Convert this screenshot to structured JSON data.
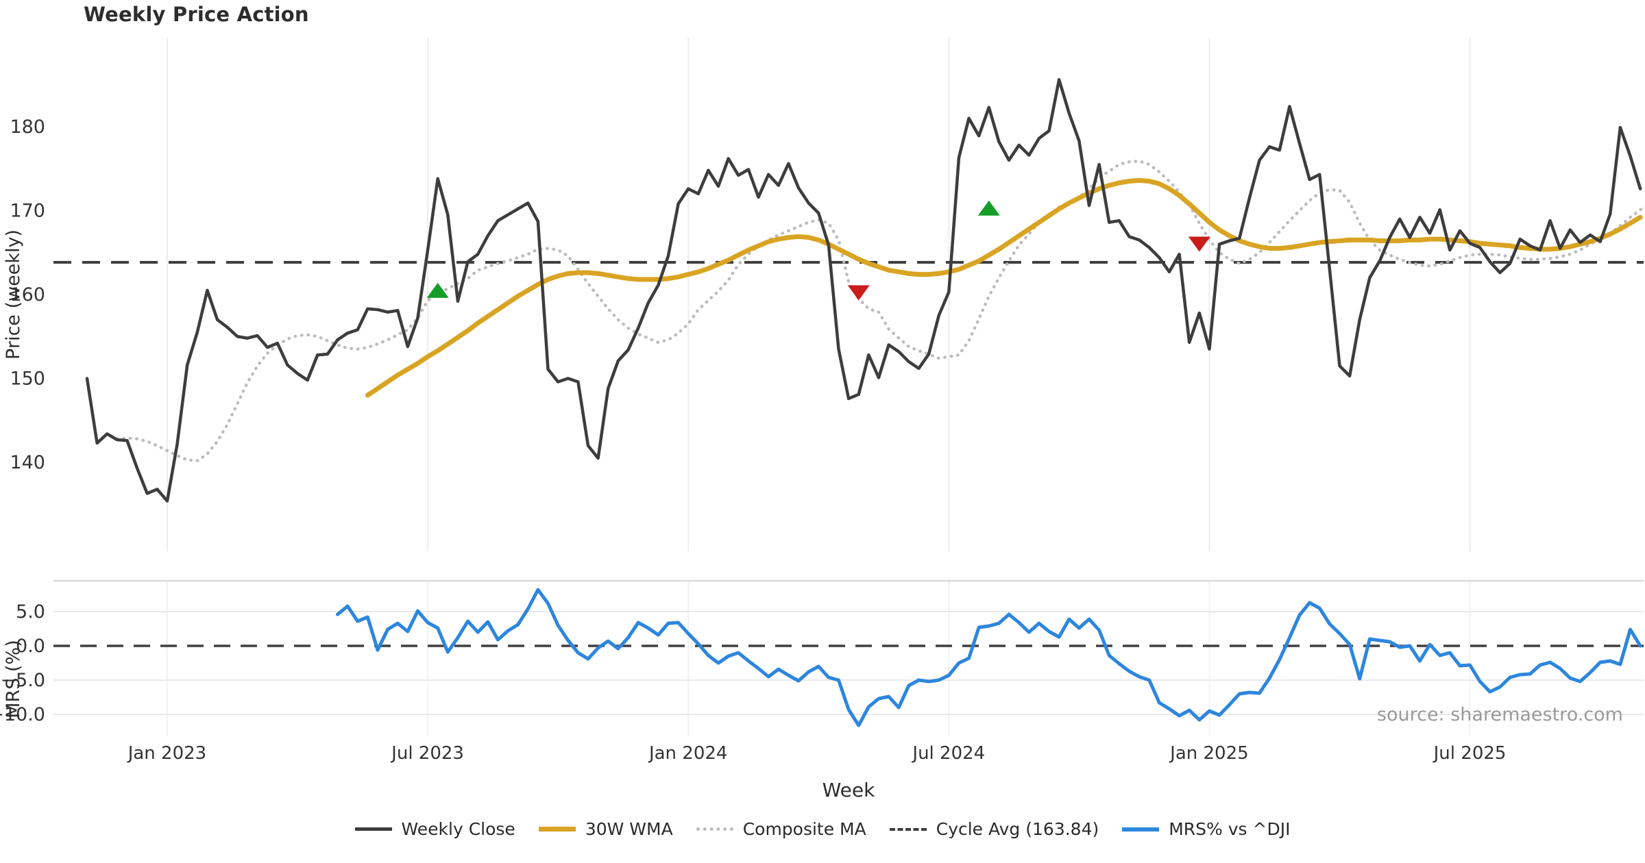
{
  "title": "Weekly Price Action",
  "source_note": "source: sharemaestro.com",
  "colors": {
    "close": "#3d3d3d",
    "wma": "#d9a423",
    "composite": "#bcbcbc",
    "cycle_avg": "#3f3f3f",
    "mrs": "#2d86dd",
    "buy_marker": "#149e27",
    "sell_marker": "#c91c1c",
    "grid_vertical": "#ededf1",
    "grid_horizontal": "#e8e8ed",
    "panel_spine": "#d8d8de",
    "tick_text": "#333333",
    "source_text": "#9a9a9a"
  },
  "legend": [
    {
      "label": "Weekly Close",
      "style": "solid",
      "color": "#3d3d3d",
      "thickness": 5
    },
    {
      "label": "30W WMA",
      "style": "solid",
      "color": "#d9a423",
      "thickness": 7
    },
    {
      "label": "Composite MA",
      "style": "dotted",
      "color": "#bcbcbc",
      "thickness": 5
    },
    {
      "label": "Cycle Avg (163.84)",
      "style": "dashed",
      "color": "#3f3f3f",
      "thickness": 4
    },
    {
      "label": "MRS% vs ^DJI",
      "style": "solid",
      "color": "#2d86dd",
      "thickness": 6
    }
  ],
  "chart_data": [
    {
      "type": "line",
      "panel": "price",
      "title": "Weekly Price Action",
      "xlabel": "Week",
      "ylabel": "Price (weekly)",
      "start_date": "2022-11-07",
      "frequency": "weekly",
      "ylim": [
        129.4,
        190.6
      ],
      "yticks": [
        {
          "v": 140,
          "label": "140"
        },
        {
          "v": 150,
          "label": "150"
        },
        {
          "v": 160,
          "label": "160"
        },
        {
          "v": 170,
          "label": "170"
        },
        {
          "v": 180,
          "label": "180"
        }
      ],
      "xticks": [
        {
          "week": 8,
          "label": "Jan 2023"
        },
        {
          "week": 34,
          "label": "Jul 2023"
        },
        {
          "week": 60,
          "label": "Jan 2024"
        },
        {
          "week": 86,
          "label": "Jul 2024"
        },
        {
          "week": 112,
          "label": "Jan 2025"
        },
        {
          "week": 138,
          "label": "Jul 2025"
        }
      ],
      "cycle_avg": 163.84,
      "series": [
        {
          "name": "Weekly Close",
          "start_week": 0,
          "values": [
            150.0,
            142.3,
            143.4,
            142.7,
            142.6,
            139.3,
            136.3,
            136.8,
            135.4,
            142.2,
            151.6,
            155.5,
            160.5,
            157.0,
            156.1,
            155.0,
            154.8,
            155.1,
            153.7,
            154.2,
            151.6,
            150.6,
            149.8,
            152.8,
            152.9,
            154.6,
            155.4,
            155.8,
            158.3,
            158.2,
            157.9,
            158.1,
            153.8,
            157.2,
            165.3,
            173.8,
            169.5,
            159.2,
            163.9,
            164.8,
            167.0,
            168.8,
            169.5,
            170.2,
            170.9,
            168.7,
            151.1,
            149.6,
            150.0,
            149.6,
            142.0,
            140.5,
            148.8,
            152.1,
            153.4,
            156.0,
            159.0,
            161.1,
            164.6,
            170.8,
            172.6,
            172.0,
            174.8,
            172.9,
            176.2,
            174.2,
            174.9,
            171.6,
            174.3,
            173.0,
            175.6,
            172.7,
            170.9,
            169.7,
            165.9,
            153.5,
            147.6,
            148.1,
            152.8,
            150.1,
            154.0,
            153.2,
            152.0,
            151.2,
            152.9,
            157.5,
            160.3,
            176.3,
            181.0,
            178.9,
            182.3,
            178.2,
            176.0,
            177.8,
            176.6,
            178.6,
            179.5,
            185.6,
            181.6,
            178.3,
            170.6,
            175.5,
            168.6,
            168.8,
            166.9,
            166.5,
            165.6,
            164.4,
            162.7,
            164.8,
            154.3,
            157.8,
            153.5,
            166.0,
            166.4,
            166.7,
            171.5,
            176.0,
            177.6,
            177.2,
            182.4,
            178.0,
            173.7,
            174.3,
            163.0,
            151.5,
            150.3,
            157.0,
            162.0,
            164.0,
            166.8,
            169.0,
            166.8,
            169.2,
            167.3,
            170.1,
            165.3,
            167.6,
            166.1,
            165.6,
            163.9,
            162.6,
            163.7,
            166.6,
            165.8,
            165.3,
            168.8,
            165.5,
            167.7,
            166.2,
            167.1,
            166.3,
            169.6,
            179.9,
            176.5,
            172.6
          ]
        },
        {
          "name": "30W WMA",
          "start_week": 28,
          "values": [
            148.0,
            148.8,
            149.6,
            150.4,
            151.1,
            151.8,
            152.6,
            153.3,
            154.1,
            154.9,
            155.7,
            156.6,
            157.4,
            158.2,
            159.0,
            159.8,
            160.5,
            161.2,
            161.8,
            162.2,
            162.5,
            162.6,
            162.6,
            162.5,
            162.3,
            162.1,
            161.9,
            161.8,
            161.8,
            161.8,
            161.9,
            162.1,
            162.4,
            162.7,
            163.1,
            163.6,
            164.1,
            164.7,
            165.3,
            165.8,
            166.3,
            166.6,
            166.8,
            166.9,
            166.8,
            166.5,
            166.0,
            165.4,
            164.8,
            164.2,
            163.7,
            163.3,
            162.9,
            162.7,
            162.5,
            162.4,
            162.4,
            162.5,
            162.7,
            163.0,
            163.5,
            164.0,
            164.7,
            165.4,
            166.2,
            167.0,
            167.8,
            168.6,
            169.4,
            170.2,
            170.9,
            171.5,
            172.1,
            172.6,
            173.0,
            173.3,
            173.5,
            173.6,
            173.5,
            173.2,
            172.6,
            171.8,
            170.8,
            169.7,
            168.6,
            167.7,
            167.0,
            166.4,
            166.0,
            165.7,
            165.5,
            165.5,
            165.6,
            165.8,
            166.0,
            166.2,
            166.3,
            166.4,
            166.5,
            166.5,
            166.5,
            166.4,
            166.4,
            166.4,
            166.5,
            166.5,
            166.6,
            166.6,
            166.5,
            166.4,
            166.3,
            166.1,
            166.0,
            165.9,
            165.8,
            165.6,
            165.5,
            165.4,
            165.4,
            165.5,
            165.7,
            166.0,
            166.3,
            166.7,
            167.2,
            167.8,
            168.5,
            169.2
          ]
        },
        {
          "name": "Composite MA",
          "start_week": 3,
          "values": [
            142.8,
            142.9,
            142.8,
            142.5,
            142.0,
            141.4,
            140.8,
            140.3,
            140.2,
            141.0,
            142.5,
            144.5,
            147.0,
            149.5,
            151.5,
            153.0,
            154.0,
            154.7,
            155.1,
            155.2,
            155.0,
            154.5,
            154.0,
            153.6,
            153.5,
            153.7,
            154.1,
            154.6,
            155.2,
            155.8,
            157.2,
            159.3,
            160.1,
            160.7,
            161.3,
            161.9,
            162.9,
            163.3,
            163.7,
            164.0,
            164.4,
            164.8,
            165.4,
            165.5,
            165.3,
            164.6,
            163.0,
            161.3,
            159.8,
            158.3,
            157.0,
            156.0,
            155.3,
            154.8,
            154.3,
            154.6,
            155.4,
            156.5,
            158.2,
            159.3,
            160.4,
            161.7,
            163.6,
            164.8,
            165.8,
            166.5,
            167.1,
            167.6,
            168.1,
            168.6,
            168.9,
            168.5,
            166.5,
            161.5,
            159.5,
            158.3,
            157.9,
            155.9,
            154.8,
            153.8,
            153.3,
            152.9,
            152.4,
            152.6,
            152.8,
            154.5,
            157.1,
            159.8,
            162.0,
            164.0,
            165.9,
            167.2,
            168.6,
            169.5,
            170.4,
            171.0,
            171.6,
            172.6,
            173.9,
            174.7,
            175.5,
            175.8,
            175.9,
            175.5,
            174.6,
            173.5,
            172.2,
            170.7,
            168.5,
            166.5,
            165.0,
            164.2,
            163.7,
            164.2,
            165.0,
            166.2,
            167.5,
            168.8,
            170.0,
            171.2,
            172.1,
            172.5,
            172.4,
            171.0,
            168.5,
            166.5,
            165.3,
            164.7,
            164.2,
            163.8,
            163.5,
            163.4,
            163.6,
            164.0,
            164.4,
            164.7,
            164.8,
            164.8,
            164.7,
            164.5,
            164.3,
            164.2,
            164.2,
            164.3,
            164.5,
            164.8,
            165.3,
            166.0,
            166.6,
            167.3,
            168.2,
            169.2,
            170.1,
            170.8,
            171.2
          ]
        }
      ],
      "markers": {
        "buy": [
          {
            "week": 35,
            "value": 160.5
          },
          {
            "week": 90,
            "value": 170.3
          }
        ],
        "sell": [
          {
            "week": 77,
            "value": 160.2
          },
          {
            "week": 111,
            "value": 166.0
          }
        ]
      }
    },
    {
      "type": "line",
      "panel": "mrs",
      "ylabel": "MRS (%)",
      "ylim": [
        -13.2,
        9.5
      ],
      "yticks": [
        {
          "v": 5,
          "label": "5.0"
        },
        {
          "v": 0,
          "label": "0.0"
        },
        {
          "v": -5,
          "label": "−5.0"
        },
        {
          "v": -10,
          "label": "−10.0"
        }
      ],
      "zero_line": 0,
      "series": [
        {
          "name": "MRS% vs ^DJI",
          "start_week": 25,
          "values": [
            4.6,
            5.8,
            3.6,
            4.2,
            -0.6,
            2.4,
            3.3,
            2.1,
            5.1,
            3.4,
            2.6,
            -0.9,
            1.2,
            3.6,
            2.0,
            3.5,
            0.9,
            2.2,
            3.1,
            5.4,
            8.2,
            6.2,
            3.0,
            0.8,
            -1.0,
            -1.9,
            -0.3,
            0.7,
            -0.4,
            1.2,
            3.4,
            2.6,
            1.6,
            3.3,
            3.4,
            1.8,
            0.3,
            -1.4,
            -2.5,
            -1.5,
            -1.0,
            -2.2,
            -3.3,
            -4.5,
            -3.4,
            -4.3,
            -5.1,
            -3.8,
            -3.0,
            -4.6,
            -5.0,
            -9.3,
            -11.6,
            -8.9,
            -7.7,
            -7.4,
            -9.0,
            -5.8,
            -5.0,
            -5.2,
            -5.0,
            -4.3,
            -2.5,
            -1.8,
            2.7,
            2.9,
            3.3,
            4.6,
            3.4,
            2.0,
            3.3,
            2.1,
            1.3,
            3.9,
            2.6,
            3.9,
            2.3,
            -1.4,
            -2.6,
            -3.7,
            -4.5,
            -5.0,
            -8.3,
            -9.2,
            -10.2,
            -9.4,
            -10.8,
            -9.5,
            -10.1,
            -8.6,
            -7.0,
            -6.8,
            -6.9,
            -4.7,
            -2.0,
            1.2,
            4.5,
            6.3,
            5.5,
            3.2,
            1.8,
            0.2,
            -4.8,
            1.0,
            0.8,
            0.6,
            -0.2,
            0.0,
            -2.2,
            0.2,
            -1.4,
            -1.0,
            -2.9,
            -2.8,
            -5.2,
            -6.7,
            -6.0,
            -4.6,
            -4.2,
            -4.1,
            -2.8,
            -2.4,
            -3.3,
            -4.7,
            -5.2,
            -3.9,
            -2.4,
            -2.2,
            -2.7,
            2.4,
            0.0
          ]
        }
      ]
    }
  ]
}
